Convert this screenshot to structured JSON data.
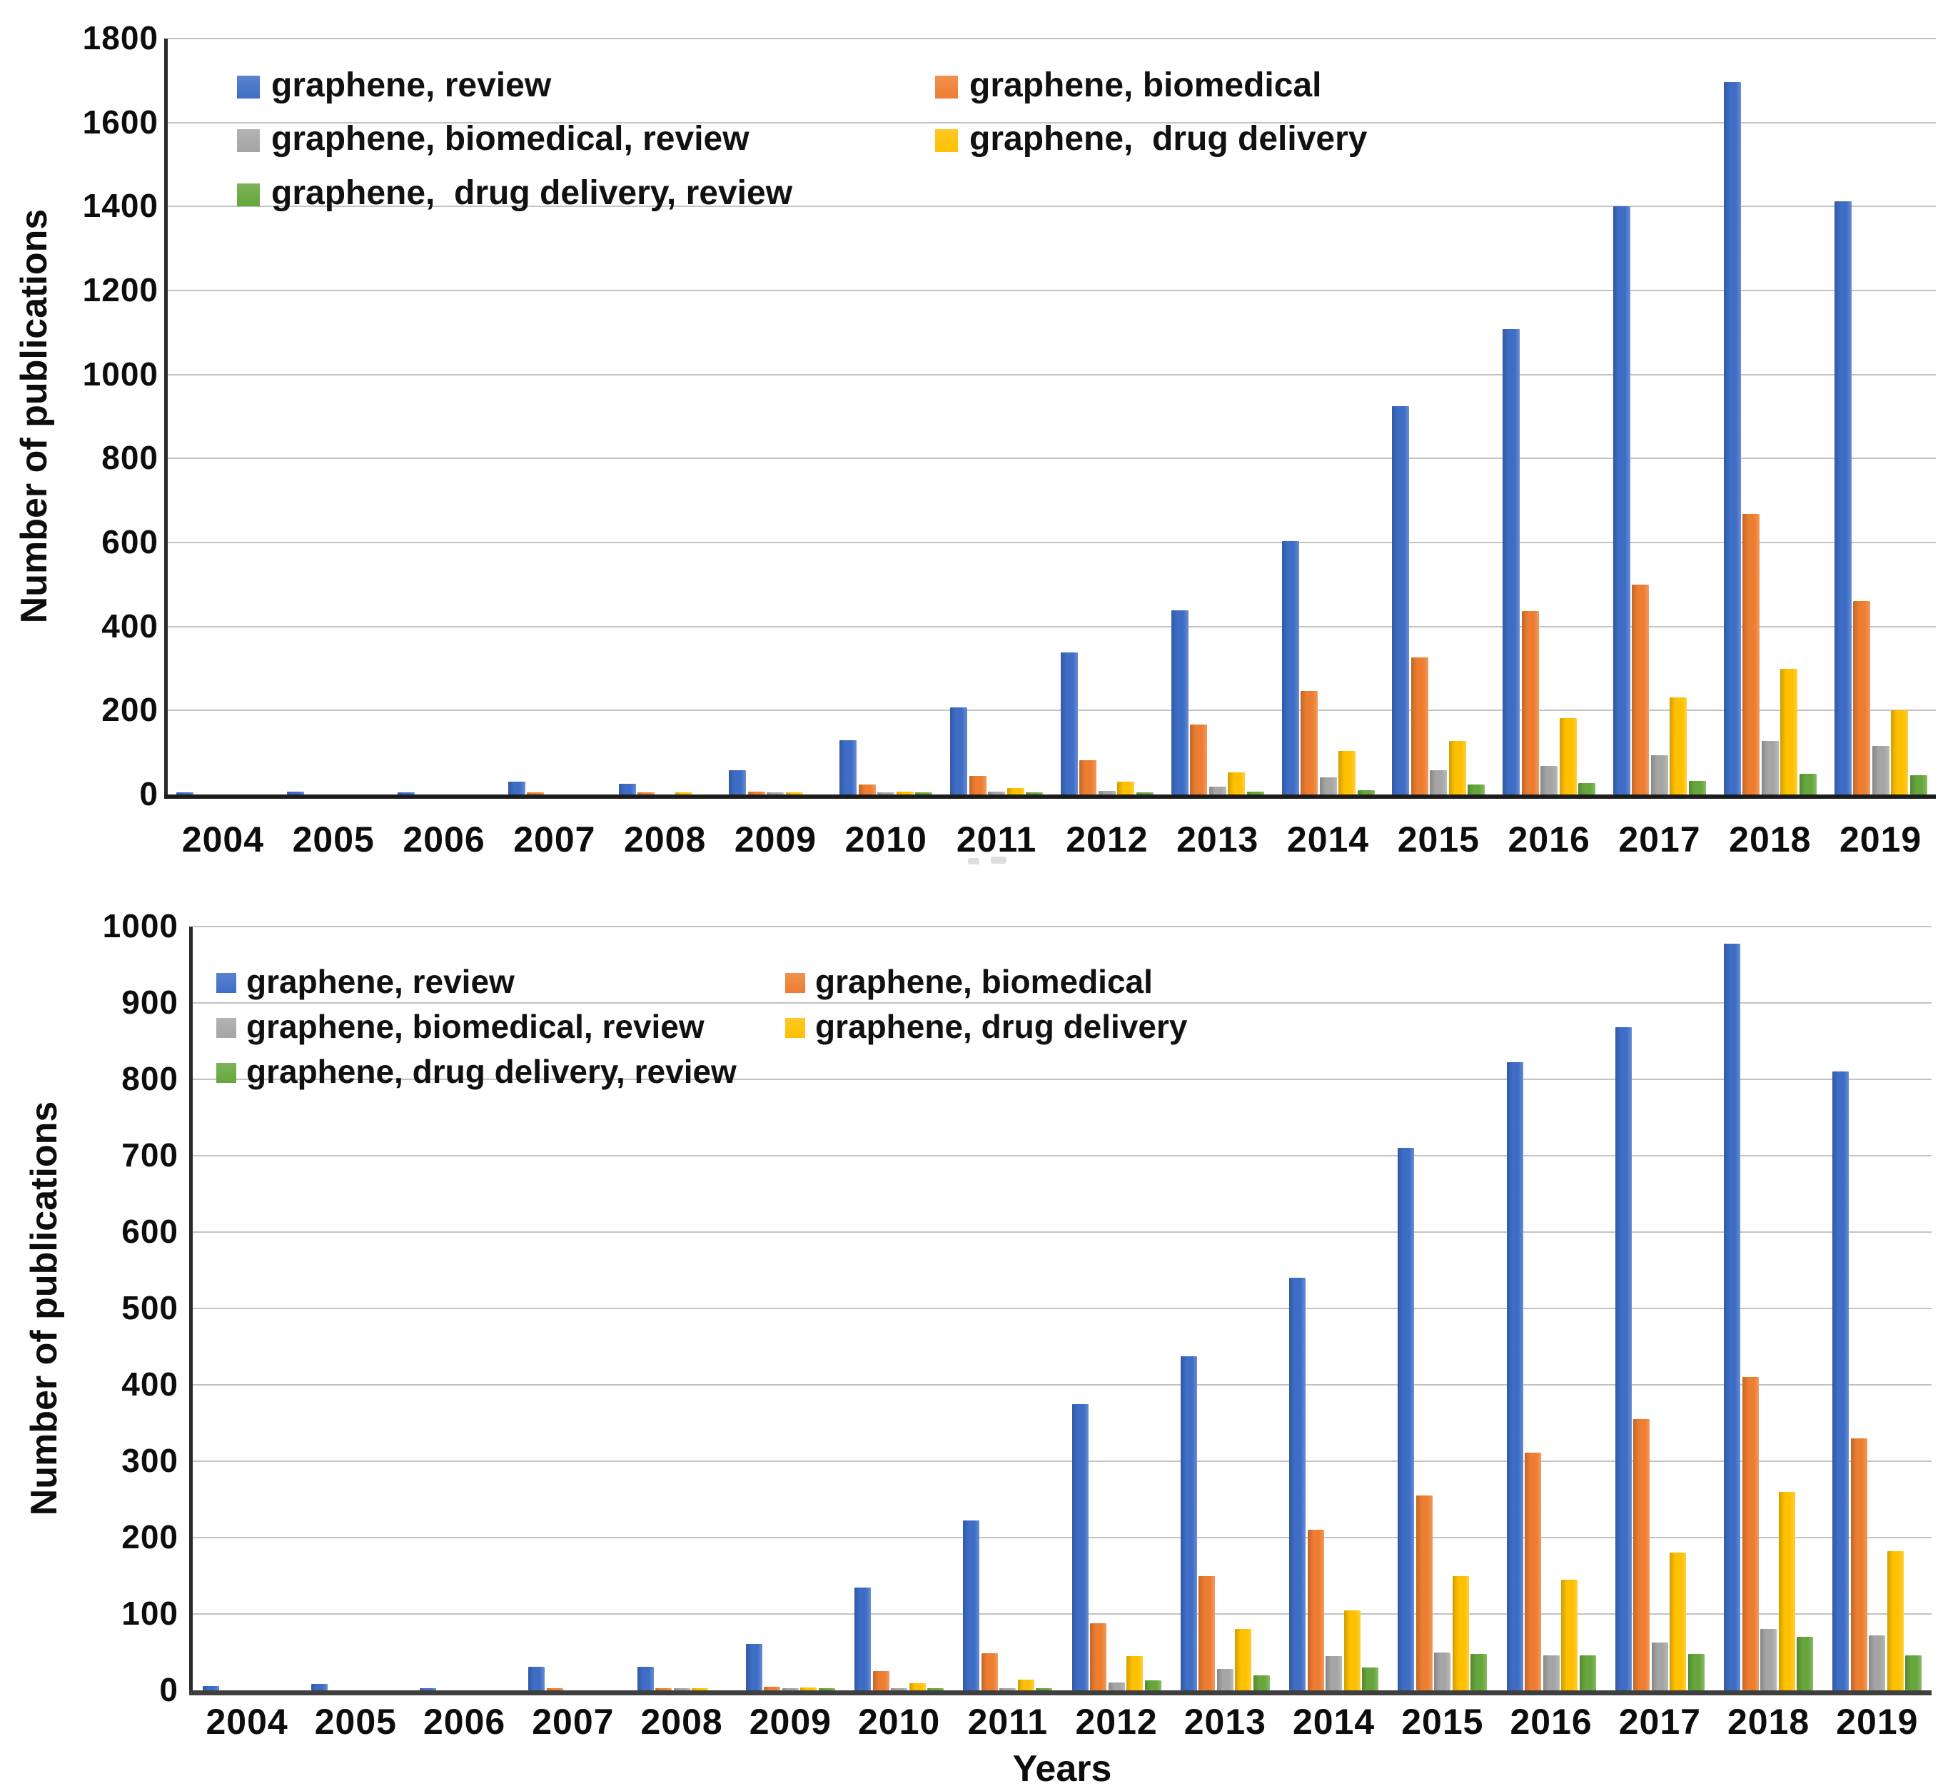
{
  "page": {
    "background": "#ffffff",
    "description": "Two stacked bar charts of publication counts per year for graphene-related search terms"
  },
  "chart_data": [
    {
      "type": "bar",
      "title": "",
      "xlabel": "",
      "ylabel": "Number of publications",
      "ylim": [
        0,
        1800
      ],
      "ytick_step": 200,
      "grid": true,
      "legend_position": "inside top-left, two columns",
      "categories": [
        "2004",
        "2005",
        "2006",
        "2007",
        "2008",
        "2009",
        "2010",
        "2011",
        "2012",
        "2013",
        "2014",
        "2015",
        "2016",
        "2017",
        "2018",
        "2019"
      ],
      "series": [
        {
          "name": "graphene, review",
          "color": "#3E6DC6",
          "values": [
            5,
            6,
            2,
            30,
            25,
            57,
            130,
            208,
            338,
            438,
            604,
            925,
            1108,
            1400,
            1697,
            1412
          ]
        },
        {
          "name": "graphene, biomedical",
          "color": "#ED7D31",
          "values": [
            0,
            0,
            0,
            2,
            3,
            6,
            24,
            44,
            81,
            166,
            246,
            326,
            436,
            500,
            668,
            460
          ]
        },
        {
          "name": "graphene, biomedical, review",
          "color": "#A5A5A5",
          "values": [
            0,
            0,
            0,
            0,
            0,
            2,
            3,
            6,
            9,
            19,
            40,
            58,
            68,
            93,
            128,
            115
          ]
        },
        {
          "name": "graphene,  drug delivery",
          "color": "#FFC000",
          "values": [
            0,
            0,
            0,
            0,
            2,
            4,
            6,
            15,
            30,
            52,
            103,
            128,
            182,
            232,
            300,
            200
          ]
        },
        {
          "name": "graphene,  drug delivery, review",
          "color": "#66A63C",
          "values": [
            0,
            0,
            0,
            0,
            0,
            0,
            1,
            2,
            3,
            6,
            10,
            24,
            27,
            32,
            50,
            46
          ]
        }
      ],
      "legend_rows": [
        [
          0,
          1
        ],
        [
          2,
          3
        ],
        [
          4
        ]
      ]
    },
    {
      "type": "bar",
      "title": "",
      "xlabel": "Years",
      "ylabel": "Number of publications",
      "ylim": [
        0,
        1000
      ],
      "ytick_step": 100,
      "grid": true,
      "legend_position": "inside top-left, two columns",
      "categories": [
        "2004",
        "2005",
        "2006",
        "2007",
        "2008",
        "2009",
        "2010",
        "2011",
        "2012",
        "2013",
        "2014",
        "2015",
        "2016",
        "2017",
        "2018",
        "2019"
      ],
      "series": [
        {
          "name": "graphene, review",
          "color": "#3E6DC6",
          "values": [
            6,
            8,
            3,
            31,
            31,
            61,
            135,
            222,
            375,
            437,
            540,
            710,
            822,
            868,
            978,
            810
          ]
        },
        {
          "name": "graphene, biomedical",
          "color": "#ED7D31",
          "values": [
            0,
            0,
            0,
            2,
            2,
            5,
            25,
            49,
            88,
            150,
            210,
            255,
            311,
            355,
            410,
            330
          ]
        },
        {
          "name": "graphene, biomedical, review",
          "color": "#A5A5A5",
          "values": [
            0,
            0,
            0,
            0,
            1,
            1,
            2,
            3,
            10,
            28,
            45,
            50,
            46,
            63,
            80,
            72
          ]
        },
        {
          "name": "graphene, drug delivery",
          "color": "#FFC000",
          "values": [
            0,
            0,
            0,
            0,
            2,
            4,
            9,
            14,
            45,
            80,
            105,
            150,
            145,
            180,
            260,
            182
          ]
        },
        {
          "name": "graphene, drug delivery, review",
          "color": "#66A63C",
          "values": [
            0,
            0,
            0,
            0,
            0,
            1,
            1,
            2,
            13,
            20,
            30,
            48,
            46,
            48,
            70,
            46
          ]
        }
      ],
      "legend_rows": [
        [
          0,
          1
        ],
        [
          2,
          3
        ],
        [
          4
        ]
      ]
    }
  ]
}
